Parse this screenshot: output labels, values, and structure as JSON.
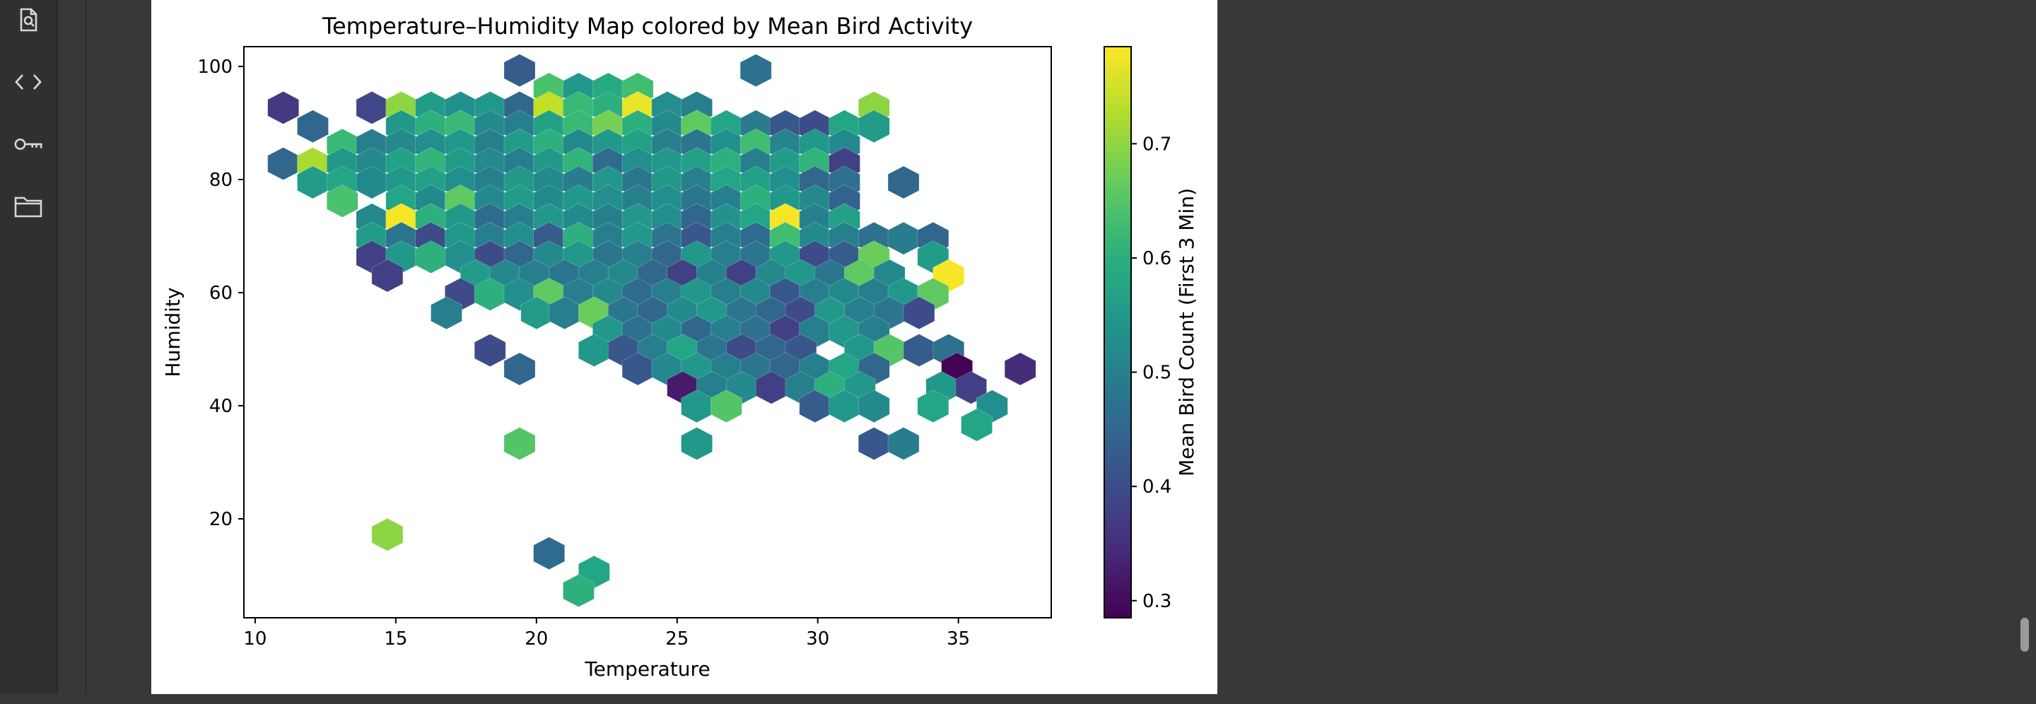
{
  "sidebar": {
    "items": [
      {
        "icon": "file-search-icon"
      },
      {
        "icon": "code-icon"
      },
      {
        "icon": "key-icon"
      },
      {
        "icon": "folder-icon"
      }
    ]
  },
  "chart_data": {
    "type": "heatmap",
    "subtype": "hexbin",
    "title": "Temperature–Humidity Map colored by Mean Bird Activity",
    "xlabel": "Temperature",
    "ylabel": "Humidity",
    "xlim": [
      9.6,
      38.3
    ],
    "ylim": [
      2.5,
      103.5
    ],
    "xticks": [
      10,
      15,
      20,
      25,
      30,
      35
    ],
    "yticks": [
      20,
      40,
      60,
      80,
      100
    ],
    "grid": false,
    "colorbar": {
      "label": "Mean Bird Count (First 3 Min)",
      "colormap": "viridis",
      "range": [
        0.285,
        0.785
      ],
      "ticks": [
        0.3,
        0.4,
        0.5,
        0.6,
        0.7
      ]
    },
    "hex_grid": {
      "x0": 11.0,
      "dx": 1.05,
      "y_top": 99.3,
      "dy": 3.3
    },
    "rows": [
      {
        "y": 99.3,
        "cells": [
          [
            19.4,
            0.43
          ],
          [
            27.8,
            0.47
          ]
        ]
      },
      {
        "y": 96.0,
        "cells": [
          [
            20.45,
            0.64
          ],
          [
            21.5,
            0.55
          ],
          [
            22.55,
            0.59
          ],
          [
            23.6,
            0.63
          ]
        ]
      },
      {
        "y": 92.7,
        "cells": [
          [
            11.0,
            0.37
          ],
          [
            14.15,
            0.39
          ],
          [
            15.2,
            0.7
          ],
          [
            16.25,
            0.56
          ],
          [
            17.3,
            0.53
          ],
          [
            18.35,
            0.55
          ],
          [
            19.4,
            0.45
          ],
          [
            20.45,
            0.74
          ],
          [
            21.5,
            0.62
          ],
          [
            22.55,
            0.6
          ],
          [
            23.6,
            0.77
          ],
          [
            24.65,
            0.53
          ],
          [
            25.7,
            0.5
          ],
          [
            32.0,
            0.7
          ]
        ]
      },
      {
        "y": 89.4,
        "cells": [
          [
            12.05,
            0.45
          ],
          [
            15.2,
            0.55
          ],
          [
            16.25,
            0.6
          ],
          [
            17.3,
            0.62
          ],
          [
            18.35,
            0.52
          ],
          [
            19.4,
            0.5
          ],
          [
            20.45,
            0.57
          ],
          [
            21.5,
            0.62
          ],
          [
            22.55,
            0.68
          ],
          [
            23.6,
            0.6
          ],
          [
            24.65,
            0.52
          ],
          [
            25.7,
            0.66
          ],
          [
            26.75,
            0.58
          ],
          [
            27.8,
            0.49
          ],
          [
            28.85,
            0.42
          ],
          [
            29.9,
            0.4
          ],
          [
            30.95,
            0.58
          ],
          [
            32.0,
            0.56
          ]
        ]
      },
      {
        "y": 86.1,
        "cells": [
          [
            13.1,
            0.62
          ],
          [
            14.15,
            0.5
          ],
          [
            15.2,
            0.52
          ],
          [
            16.25,
            0.53
          ],
          [
            17.3,
            0.55
          ],
          [
            18.35,
            0.5
          ],
          [
            19.4,
            0.56
          ],
          [
            20.45,
            0.6
          ],
          [
            21.5,
            0.52
          ],
          [
            22.55,
            0.55
          ],
          [
            23.6,
            0.57
          ],
          [
            24.65,
            0.5
          ],
          [
            25.7,
            0.48
          ],
          [
            26.75,
            0.53
          ],
          [
            27.8,
            0.63
          ],
          [
            28.85,
            0.51
          ],
          [
            29.9,
            0.55
          ],
          [
            30.95,
            0.52
          ]
        ]
      },
      {
        "y": 82.8,
        "cells": [
          [
            11.0,
            0.45
          ],
          [
            12.05,
            0.72
          ],
          [
            13.1,
            0.55
          ],
          [
            14.15,
            0.52
          ],
          [
            15.2,
            0.57
          ],
          [
            16.25,
            0.61
          ],
          [
            17.3,
            0.56
          ],
          [
            18.35,
            0.52
          ],
          [
            19.4,
            0.5
          ],
          [
            20.45,
            0.55
          ],
          [
            21.5,
            0.61
          ],
          [
            22.55,
            0.46
          ],
          [
            23.6,
            0.53
          ],
          [
            24.65,
            0.55
          ],
          [
            25.7,
            0.57
          ],
          [
            26.75,
            0.6
          ],
          [
            27.8,
            0.5
          ],
          [
            28.85,
            0.56
          ],
          [
            29.9,
            0.61
          ],
          [
            30.95,
            0.38
          ]
        ]
      },
      {
        "y": 79.5,
        "cells": [
          [
            12.05,
            0.56
          ],
          [
            13.1,
            0.58
          ],
          [
            14.15,
            0.52
          ],
          [
            15.2,
            0.55
          ],
          [
            16.25,
            0.57
          ],
          [
            17.3,
            0.53
          ],
          [
            18.35,
            0.5
          ],
          [
            19.4,
            0.55
          ],
          [
            20.45,
            0.52
          ],
          [
            21.5,
            0.49
          ],
          [
            22.55,
            0.55
          ],
          [
            23.6,
            0.48
          ],
          [
            24.65,
            0.55
          ],
          [
            25.7,
            0.5
          ],
          [
            26.75,
            0.58
          ],
          [
            27.8,
            0.57
          ],
          [
            28.85,
            0.53
          ],
          [
            29.9,
            0.45
          ],
          [
            30.95,
            0.47
          ],
          [
            33.05,
            0.45
          ]
        ]
      },
      {
        "y": 76.2,
        "cells": [
          [
            13.1,
            0.64
          ],
          [
            15.2,
            0.58
          ],
          [
            16.25,
            0.52
          ],
          [
            17.3,
            0.66
          ],
          [
            18.35,
            0.52
          ],
          [
            19.4,
            0.56
          ],
          [
            20.45,
            0.52
          ],
          [
            21.5,
            0.55
          ],
          [
            22.55,
            0.53
          ],
          [
            23.6,
            0.5
          ],
          [
            24.65,
            0.53
          ],
          [
            25.7,
            0.48
          ],
          [
            26.75,
            0.5
          ],
          [
            27.8,
            0.6
          ],
          [
            28.85,
            0.55
          ],
          [
            29.9,
            0.52
          ],
          [
            30.95,
            0.44
          ]
        ]
      },
      {
        "y": 72.9,
        "cells": [
          [
            14.15,
            0.52
          ],
          [
            15.2,
            0.78
          ],
          [
            16.25,
            0.6
          ],
          [
            17.3,
            0.55
          ],
          [
            18.35,
            0.46
          ],
          [
            19.4,
            0.5
          ],
          [
            20.45,
            0.55
          ],
          [
            21.5,
            0.52
          ],
          [
            22.55,
            0.5
          ],
          [
            23.6,
            0.55
          ],
          [
            24.65,
            0.53
          ],
          [
            25.7,
            0.45
          ],
          [
            26.75,
            0.54
          ],
          [
            27.8,
            0.58
          ],
          [
            28.85,
            0.78
          ],
          [
            29.9,
            0.5
          ],
          [
            30.95,
            0.57
          ]
        ]
      },
      {
        "y": 69.6,
        "cells": [
          [
            14.15,
            0.56
          ],
          [
            15.2,
            0.48
          ],
          [
            16.25,
            0.4
          ],
          [
            17.3,
            0.55
          ],
          [
            18.35,
            0.5
          ],
          [
            19.4,
            0.53
          ],
          [
            20.45,
            0.43
          ],
          [
            21.5,
            0.6
          ],
          [
            22.55,
            0.5
          ],
          [
            23.6,
            0.55
          ],
          [
            24.65,
            0.48
          ],
          [
            25.7,
            0.42
          ],
          [
            26.75,
            0.5
          ],
          [
            27.8,
            0.46
          ],
          [
            28.85,
            0.63
          ],
          [
            29.9,
            0.52
          ],
          [
            30.95,
            0.5
          ],
          [
            32.0,
            0.47
          ],
          [
            33.05,
            0.49
          ],
          [
            34.1,
            0.45
          ]
        ]
      },
      {
        "y": 66.3,
        "cells": [
          [
            14.15,
            0.38
          ],
          [
            15.2,
            0.55
          ],
          [
            16.25,
            0.6
          ],
          [
            17.3,
            0.53
          ],
          [
            18.35,
            0.4
          ],
          [
            19.4,
            0.45
          ],
          [
            20.45,
            0.52
          ],
          [
            21.5,
            0.55
          ],
          [
            22.55,
            0.48
          ],
          [
            23.6,
            0.5
          ],
          [
            24.65,
            0.45
          ],
          [
            25.7,
            0.55
          ],
          [
            26.75,
            0.5
          ],
          [
            27.8,
            0.48
          ],
          [
            28.85,
            0.55
          ],
          [
            29.9,
            0.4
          ],
          [
            30.95,
            0.43
          ],
          [
            32.0,
            0.67
          ],
          [
            34.1,
            0.56
          ]
        ]
      },
      {
        "y": 63.0,
        "cells": [
          [
            14.7,
            0.38
          ],
          [
            17.85,
            0.56
          ],
          [
            18.9,
            0.52
          ],
          [
            19.95,
            0.5
          ],
          [
            21.0,
            0.48
          ],
          [
            22.05,
            0.5
          ],
          [
            23.1,
            0.52
          ],
          [
            24.15,
            0.45
          ],
          [
            25.2,
            0.38
          ],
          [
            26.25,
            0.5
          ],
          [
            27.3,
            0.38
          ],
          [
            28.35,
            0.52
          ],
          [
            29.4,
            0.55
          ],
          [
            30.45,
            0.48
          ],
          [
            31.5,
            0.66
          ],
          [
            32.55,
            0.52
          ],
          [
            34.65,
            0.78
          ]
        ]
      },
      {
        "y": 59.7,
        "cells": [
          [
            17.3,
            0.4
          ],
          [
            18.35,
            0.6
          ],
          [
            19.4,
            0.53
          ],
          [
            20.45,
            0.66
          ],
          [
            21.5,
            0.5
          ],
          [
            22.55,
            0.52
          ],
          [
            23.6,
            0.46
          ],
          [
            24.65,
            0.5
          ],
          [
            25.7,
            0.55
          ],
          [
            26.75,
            0.5
          ],
          [
            27.8,
            0.52
          ],
          [
            28.85,
            0.42
          ],
          [
            29.9,
            0.5
          ],
          [
            30.95,
            0.52
          ],
          [
            32.0,
            0.5
          ],
          [
            33.05,
            0.55
          ],
          [
            34.1,
            0.66
          ]
        ]
      },
      {
        "y": 56.4,
        "cells": [
          [
            16.8,
            0.5
          ],
          [
            20.0,
            0.56
          ],
          [
            21.0,
            0.5
          ],
          [
            22.05,
            0.67
          ],
          [
            23.1,
            0.48
          ],
          [
            24.15,
            0.45
          ],
          [
            25.2,
            0.52
          ],
          [
            26.25,
            0.55
          ],
          [
            27.3,
            0.48
          ],
          [
            28.35,
            0.45
          ],
          [
            29.4,
            0.4
          ],
          [
            30.45,
            0.55
          ],
          [
            31.5,
            0.5
          ],
          [
            32.55,
            0.48
          ],
          [
            33.6,
            0.4
          ]
        ]
      },
      {
        "y": 53.1,
        "cells": [
          [
            22.55,
            0.55
          ],
          [
            23.6,
            0.47
          ],
          [
            24.65,
            0.52
          ],
          [
            25.7,
            0.45
          ],
          [
            26.75,
            0.5
          ],
          [
            27.8,
            0.47
          ],
          [
            28.85,
            0.38
          ],
          [
            29.9,
            0.5
          ],
          [
            30.95,
            0.55
          ],
          [
            32.0,
            0.5
          ]
        ]
      },
      {
        "y": 49.8,
        "cells": [
          [
            18.35,
            0.4
          ],
          [
            22.05,
            0.55
          ],
          [
            23.1,
            0.42
          ],
          [
            24.15,
            0.5
          ],
          [
            25.2,
            0.58
          ],
          [
            26.25,
            0.48
          ],
          [
            27.3,
            0.4
          ],
          [
            28.35,
            0.45
          ],
          [
            29.4,
            0.42
          ],
          [
            31.5,
            0.55
          ],
          [
            32.55,
            0.65
          ],
          [
            33.6,
            0.43
          ],
          [
            34.65,
            0.47
          ]
        ]
      },
      {
        "y": 46.5,
        "cells": [
          [
            19.4,
            0.45
          ],
          [
            23.6,
            0.42
          ],
          [
            24.65,
            0.52
          ],
          [
            25.7,
            0.55
          ],
          [
            26.75,
            0.5
          ],
          [
            27.8,
            0.48
          ],
          [
            28.85,
            0.45
          ],
          [
            29.9,
            0.5
          ],
          [
            30.95,
            0.58
          ],
          [
            32.0,
            0.45
          ],
          [
            34.95,
            0.29
          ],
          [
            37.2,
            0.35
          ]
        ]
      },
      {
        "y": 43.2,
        "cells": [
          [
            25.2,
            0.32
          ],
          [
            26.25,
            0.5
          ],
          [
            27.3,
            0.52
          ],
          [
            28.35,
            0.38
          ],
          [
            29.4,
            0.5
          ],
          [
            30.45,
            0.6
          ],
          [
            31.5,
            0.55
          ],
          [
            34.4,
            0.55
          ],
          [
            35.45,
            0.38
          ]
        ]
      },
      {
        "y": 39.9,
        "cells": [
          [
            25.7,
            0.55
          ],
          [
            26.75,
            0.65
          ],
          [
            29.9,
            0.43
          ],
          [
            30.95,
            0.55
          ],
          [
            32.0,
            0.52
          ],
          [
            34.1,
            0.58
          ],
          [
            36.2,
            0.53
          ]
        ]
      },
      {
        "y": 36.6,
        "cells": [
          [
            35.65,
            0.58
          ]
        ]
      },
      {
        "y": 33.3,
        "cells": [
          [
            19.4,
            0.65
          ],
          [
            25.7,
            0.55
          ],
          [
            32.0,
            0.42
          ],
          [
            33.05,
            0.49
          ]
        ]
      },
      {
        "y": 17.2,
        "cells": [
          [
            14.7,
            0.7
          ]
        ]
      },
      {
        "y": 13.9,
        "cells": [
          [
            20.45,
            0.46
          ]
        ]
      },
      {
        "y": 10.6,
        "cells": [
          [
            22.05,
            0.58
          ]
        ]
      },
      {
        "y": 7.3,
        "cells": [
          [
            21.5,
            0.6
          ]
        ]
      }
    ]
  }
}
